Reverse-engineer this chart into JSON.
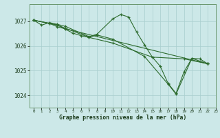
{
  "title": "Graphe pression niveau de la mer (hPa)",
  "background_color": "#cce8e8",
  "grid_color": "#a8cece",
  "line_color": "#2d6b2d",
  "marker_color": "#2d6b2d",
  "xlim": [
    -0.5,
    23
  ],
  "ylim": [
    1023.5,
    1027.7
  ],
  "yticks": [
    1024,
    1025,
    1026,
    1027
  ],
  "xticks": [
    0,
    1,
    2,
    3,
    4,
    5,
    6,
    7,
    8,
    9,
    10,
    11,
    12,
    13,
    14,
    15,
    16,
    17,
    18,
    19,
    20,
    21,
    22,
    23
  ],
  "series1": [
    [
      0,
      1027.05
    ],
    [
      1,
      1026.85
    ],
    [
      2,
      1026.95
    ],
    [
      3,
      1026.88
    ],
    [
      4,
      1026.8
    ],
    [
      7,
      1026.38
    ],
    [
      8,
      1026.48
    ],
    [
      10,
      1027.1
    ],
    [
      11,
      1027.28
    ],
    [
      12,
      1027.18
    ],
    [
      13,
      1026.58
    ],
    [
      14,
      1026.05
    ],
    [
      15,
      1025.55
    ],
    [
      16,
      1025.18
    ],
    [
      17,
      1024.48
    ],
    [
      18,
      1024.08
    ],
    [
      19,
      1024.95
    ],
    [
      20,
      1025.5
    ],
    [
      21,
      1025.48
    ],
    [
      22,
      1025.28
    ]
  ],
  "series2": [
    [
      0,
      1027.05
    ],
    [
      2,
      1026.92
    ],
    [
      3,
      1026.85
    ],
    [
      7,
      1026.35
    ],
    [
      8,
      1026.45
    ],
    [
      10,
      1026.28
    ],
    [
      14,
      1025.58
    ],
    [
      17,
      1024.45
    ],
    [
      18,
      1024.05
    ],
    [
      20,
      1025.5
    ],
    [
      22,
      1025.28
    ]
  ],
  "series3": [
    [
      0,
      1027.05
    ],
    [
      3,
      1026.85
    ],
    [
      4,
      1026.68
    ],
    [
      5,
      1026.52
    ],
    [
      6,
      1026.42
    ],
    [
      7,
      1026.35
    ],
    [
      10,
      1026.12
    ],
    [
      15,
      1025.55
    ],
    [
      19,
      1025.48
    ],
    [
      22,
      1025.28
    ]
  ],
  "series4": [
    [
      0,
      1027.05
    ],
    [
      2,
      1026.92
    ],
    [
      3,
      1026.78
    ],
    [
      22,
      1025.28
    ]
  ]
}
